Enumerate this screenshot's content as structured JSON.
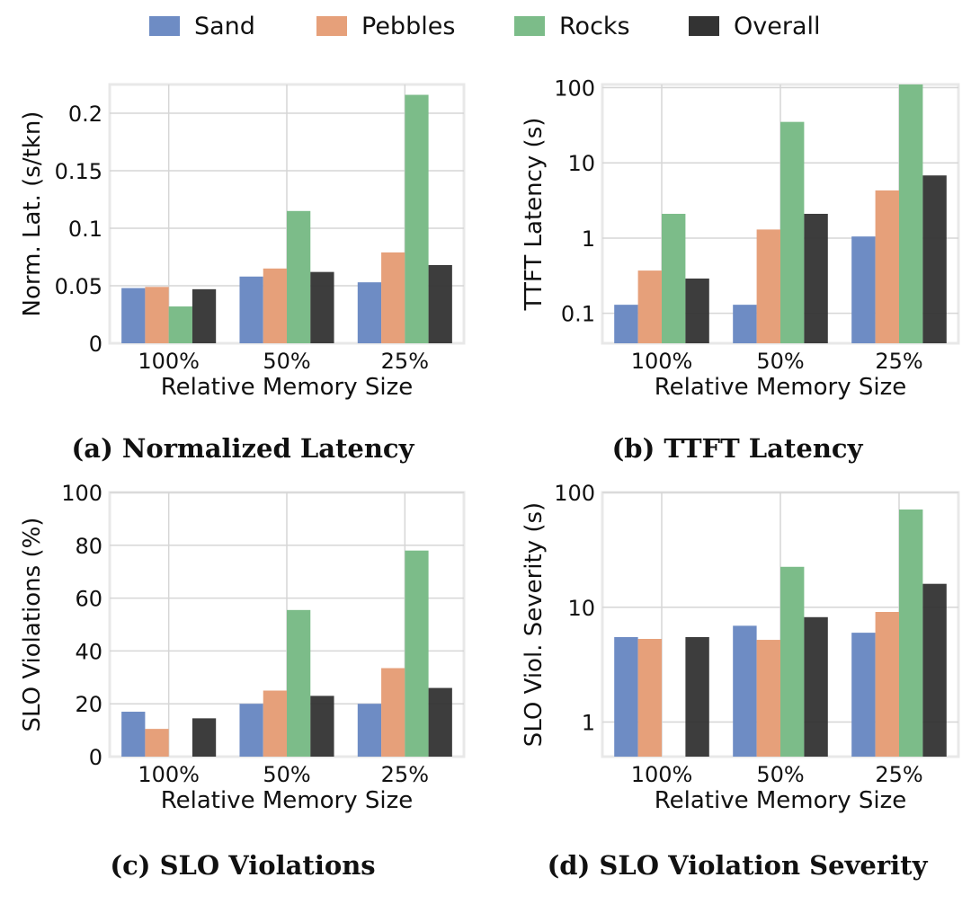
{
  "legend": [
    {
      "label": "Sand",
      "color": "#6e8cc4"
    },
    {
      "label": "Pebbles",
      "color": "#e6a07a"
    },
    {
      "label": "Rocks",
      "color": "#7cbc89"
    },
    {
      "label": "Overall",
      "color": "#333333"
    }
  ],
  "chart_data": [
    {
      "type": "bar",
      "caption": "(a) Normalized Latency",
      "xlabel": "Relative Memory Size",
      "ylabel": "Norm. Lat. (s/tkn)",
      "categories": [
        "100%",
        "50%",
        "25%"
      ],
      "yscale": "linear",
      "ylim": [
        0,
        0.225
      ],
      "yticks": [
        0,
        0.05,
        0.1,
        0.15,
        0.2
      ],
      "ytick_labels": [
        "0",
        "0.05",
        "0.1",
        "0.15",
        "0.2"
      ],
      "series": [
        {
          "name": "Sand",
          "values": [
            0.048,
            0.058,
            0.053
          ]
        },
        {
          "name": "Pebbles",
          "values": [
            0.049,
            0.065,
            0.079
          ]
        },
        {
          "name": "Rocks",
          "values": [
            0.032,
            0.115,
            0.216
          ]
        },
        {
          "name": "Overall",
          "values": [
            0.047,
            0.062,
            0.068
          ]
        }
      ]
    },
    {
      "type": "bar",
      "caption": "(b) TTFT Latency",
      "xlabel": "Relative Memory Size",
      "ylabel": "TTFT Latency (s)",
      "categories": [
        "100%",
        "50%",
        "25%"
      ],
      "yscale": "log",
      "ylim": [
        0.04,
        110
      ],
      "yticks": [
        0.1,
        1,
        10,
        100
      ],
      "ytick_labels": [
        "0.1",
        "1",
        "10",
        "100"
      ],
      "series": [
        {
          "name": "Sand",
          "values": [
            0.13,
            0.13,
            1.05
          ]
        },
        {
          "name": "Pebbles",
          "values": [
            0.37,
            1.3,
            4.3
          ]
        },
        {
          "name": "Rocks",
          "values": [
            2.1,
            35,
            110
          ]
        },
        {
          "name": "Overall",
          "values": [
            0.29,
            2.1,
            6.8
          ]
        }
      ]
    },
    {
      "type": "bar",
      "caption": "(c) SLO Violations",
      "xlabel": "Relative Memory Size",
      "ylabel": "SLO Violations (%)",
      "categories": [
        "100%",
        "50%",
        "25%"
      ],
      "yscale": "linear",
      "ylim": [
        0,
        100
      ],
      "yticks": [
        0,
        20,
        40,
        60,
        80,
        100
      ],
      "ytick_labels": [
        "0",
        "20",
        "40",
        "60",
        "80",
        "100"
      ],
      "series": [
        {
          "name": "Sand",
          "values": [
            17,
            20,
            20
          ]
        },
        {
          "name": "Pebbles",
          "values": [
            10.5,
            25,
            33.5
          ]
        },
        {
          "name": "Rocks",
          "values": [
            0,
            55.5,
            78
          ]
        },
        {
          "name": "Overall",
          "values": [
            14.5,
            23,
            26
          ]
        }
      ]
    },
    {
      "type": "bar",
      "caption": "(d) SLO Violation Severity",
      "xlabel": "Relative Memory Size",
      "ylabel": "SLO Viol. Severity (s)",
      "categories": [
        "100%",
        "50%",
        "25%"
      ],
      "yscale": "log",
      "ylim": [
        0.5,
        100
      ],
      "yticks": [
        1,
        10,
        100
      ],
      "ytick_labels": [
        "1",
        "10",
        "100"
      ],
      "series": [
        {
          "name": "Sand",
          "values": [
            5.5,
            6.9,
            6.0
          ]
        },
        {
          "name": "Pebbles",
          "values": [
            5.3,
            5.2,
            9.1
          ]
        },
        {
          "name": "Rocks",
          "values": [
            0,
            22.5,
            71
          ]
        },
        {
          "name": "Overall",
          "values": [
            5.5,
            8.2,
            16
          ]
        }
      ]
    }
  ]
}
